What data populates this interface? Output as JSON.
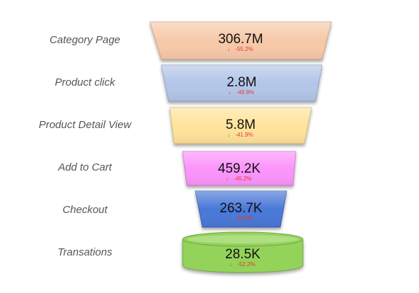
{
  "chart_data": {
    "type": "funnel",
    "stages": [
      {
        "label": "Category Page",
        "value": 306700000,
        "value_text": "306.7M",
        "change_text": "-55.2%",
        "color": "#f7c9a8"
      },
      {
        "label": "Product click",
        "value": 2800000,
        "value_text": "2.8M",
        "change_text": "-49.8%",
        "color": "#b3c6e8"
      },
      {
        "label": "Product Detail View",
        "value": 5800000,
        "value_text": "5.8M",
        "change_text": "-41.9%",
        "color": "#ffe39a"
      },
      {
        "label": "Add to Cart",
        "value": 459200,
        "value_text": "459.2K",
        "change_text": "-45.2%",
        "color": "#fb94fb"
      },
      {
        "label": "Checkout",
        "value": 263700,
        "value_text": "263.7K",
        "change_text": "-83.0%",
        "color": "#4a78d8"
      },
      {
        "label": "Transations",
        "value": 28500,
        "value_text": "28.5K",
        "change_text": "-52.2%",
        "color": "#94d35a"
      }
    ],
    "change_icon": "down-arrow-icon",
    "change_color": "#e53935",
    "final_stage_shape": "cylinder"
  }
}
